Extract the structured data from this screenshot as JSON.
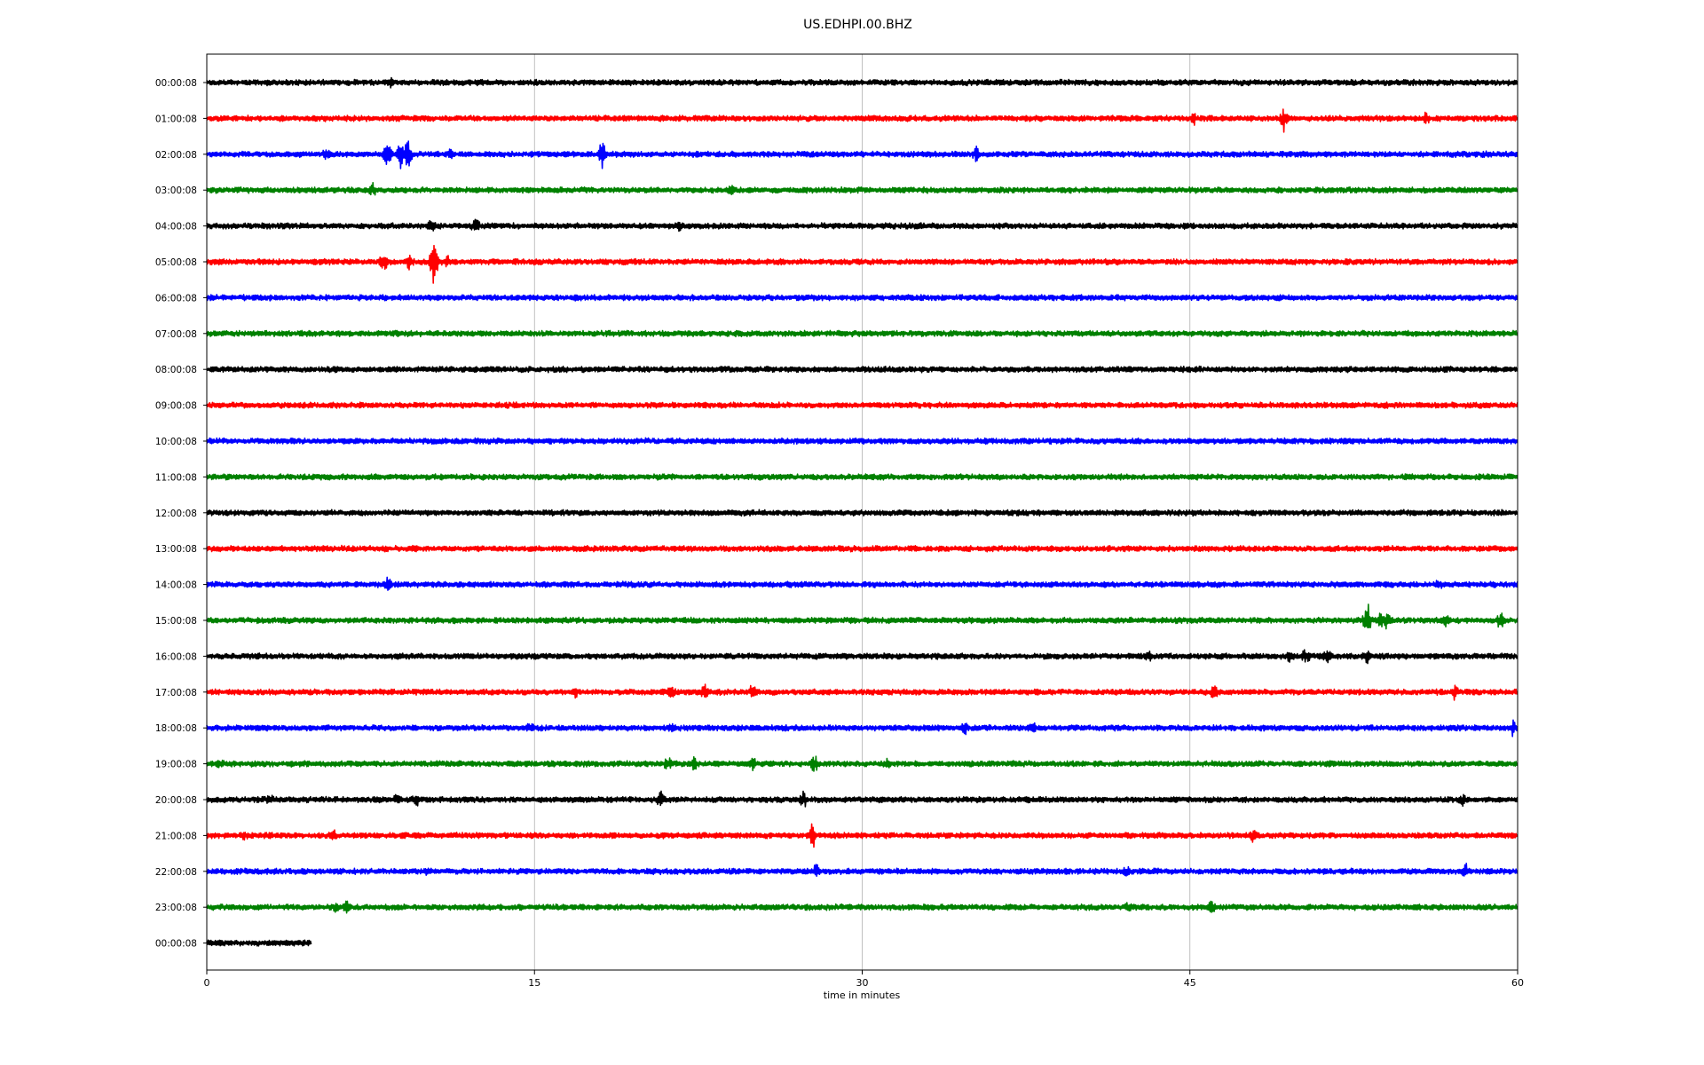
{
  "chart_data": {
    "type": "line",
    "title": "US.EDHPI.00.BHZ",
    "xlabel": "time in minutes",
    "ylabel": "",
    "xlim": [
      0,
      60
    ],
    "xticks": [
      0,
      15,
      30,
      45,
      60
    ],
    "grid": "vertical lines at x ticks",
    "line_colors": [
      "#000000",
      "#ff0000",
      "#0000ff",
      "#008000"
    ],
    "rows": [
      {
        "label": "00:00:08",
        "end_minute": 60,
        "events": [
          {
            "t": 8.4,
            "a": 0.4
          }
        ]
      },
      {
        "label": "01:00:08",
        "end_minute": 60,
        "events": [
          {
            "t": 45.2,
            "a": 0.3
          },
          {
            "t": 49.3,
            "a": 0.7
          },
          {
            "t": 55.8,
            "a": 0.4
          }
        ]
      },
      {
        "label": "02:00:08",
        "end_minute": 60,
        "events": [
          {
            "t": 5.5,
            "a": 0.4
          },
          {
            "t": 8.3,
            "a": 1.3
          },
          {
            "t": 8.9,
            "a": 1.1
          },
          {
            "t": 9.2,
            "a": 1.0
          },
          {
            "t": 11.2,
            "a": 0.4
          },
          {
            "t": 18.1,
            "a": 0.9
          },
          {
            "t": 35.2,
            "a": 0.4
          }
        ]
      },
      {
        "label": "03:00:08",
        "end_minute": 60,
        "events": [
          {
            "t": 7.6,
            "a": 0.5
          },
          {
            "t": 24.0,
            "a": 0.4
          }
        ]
      },
      {
        "label": "04:00:08",
        "end_minute": 60,
        "events": [
          {
            "t": 10.3,
            "a": 0.5
          },
          {
            "t": 12.3,
            "a": 0.5
          },
          {
            "t": 21.6,
            "a": 0.4
          }
        ]
      },
      {
        "label": "05:00:08",
        "end_minute": 60,
        "events": [
          {
            "t": 8.1,
            "a": 0.6
          },
          {
            "t": 9.3,
            "a": 0.5
          },
          {
            "t": 10.4,
            "a": 2.2
          },
          {
            "t": 11.0,
            "a": 0.4
          }
        ]
      },
      {
        "label": "06:00:08",
        "end_minute": 60,
        "events": []
      },
      {
        "label": "07:00:08",
        "end_minute": 60,
        "events": []
      },
      {
        "label": "08:00:08",
        "end_minute": 60,
        "events": []
      },
      {
        "label": "09:00:08",
        "end_minute": 60,
        "events": []
      },
      {
        "label": "10:00:08",
        "end_minute": 60,
        "events": []
      },
      {
        "label": "11:00:08",
        "end_minute": 60,
        "events": []
      },
      {
        "label": "12:00:08",
        "end_minute": 60,
        "events": []
      },
      {
        "label": "13:00:08",
        "end_minute": 60,
        "events": []
      },
      {
        "label": "14:00:08",
        "end_minute": 60,
        "events": [
          {
            "t": 8.3,
            "a": 0.4
          },
          {
            "t": 56.4,
            "a": 0.3
          }
        ]
      },
      {
        "label": "15:00:08",
        "end_minute": 60,
        "events": [
          {
            "t": 53.1,
            "a": 1.3
          },
          {
            "t": 53.7,
            "a": 0.6
          },
          {
            "t": 54.0,
            "a": 0.5
          },
          {
            "t": 56.7,
            "a": 0.5
          },
          {
            "t": 59.2,
            "a": 0.5
          }
        ]
      },
      {
        "label": "16:00:08",
        "end_minute": 60,
        "events": [
          {
            "t": 43.1,
            "a": 0.4
          },
          {
            "t": 49.6,
            "a": 0.5
          },
          {
            "t": 50.3,
            "a": 0.5
          },
          {
            "t": 51.3,
            "a": 0.7
          },
          {
            "t": 53.1,
            "a": 0.4
          }
        ]
      },
      {
        "label": "17:00:08",
        "end_minute": 60,
        "events": [
          {
            "t": 16.9,
            "a": 0.3
          },
          {
            "t": 21.3,
            "a": 0.5
          },
          {
            "t": 22.8,
            "a": 0.5
          },
          {
            "t": 25.0,
            "a": 0.5
          },
          {
            "t": 46.1,
            "a": 0.5
          },
          {
            "t": 57.1,
            "a": 0.5
          }
        ]
      },
      {
        "label": "18:00:08",
        "end_minute": 60,
        "events": [
          {
            "t": 14.8,
            "a": 0.3
          },
          {
            "t": 21.3,
            "a": 0.3
          },
          {
            "t": 34.7,
            "a": 0.4
          },
          {
            "t": 37.8,
            "a": 0.4
          },
          {
            "t": 59.8,
            "a": 0.5
          }
        ]
      },
      {
        "label": "19:00:08",
        "end_minute": 60,
        "events": [
          {
            "t": 0.6,
            "a": 0.3
          },
          {
            "t": 21.1,
            "a": 0.4
          },
          {
            "t": 22.3,
            "a": 0.5
          },
          {
            "t": 25.0,
            "a": 0.4
          },
          {
            "t": 27.8,
            "a": 0.6
          },
          {
            "t": 31.2,
            "a": 0.3
          }
        ]
      },
      {
        "label": "20:00:08",
        "end_minute": 60,
        "events": [
          {
            "t": 2.9,
            "a": 0.3
          },
          {
            "t": 8.7,
            "a": 0.4
          },
          {
            "t": 9.6,
            "a": 0.4
          },
          {
            "t": 20.8,
            "a": 0.6
          },
          {
            "t": 27.3,
            "a": 0.5
          },
          {
            "t": 57.5,
            "a": 0.4
          }
        ]
      },
      {
        "label": "21:00:08",
        "end_minute": 60,
        "events": [
          {
            "t": 1.7,
            "a": 0.3
          },
          {
            "t": 5.8,
            "a": 0.3
          },
          {
            "t": 27.7,
            "a": 1.0
          },
          {
            "t": 47.9,
            "a": 0.4
          }
        ]
      },
      {
        "label": "22:00:08",
        "end_minute": 60,
        "events": [
          {
            "t": 10.1,
            "a": 0.3
          },
          {
            "t": 27.9,
            "a": 0.5
          },
          {
            "t": 42.1,
            "a": 0.3
          },
          {
            "t": 57.6,
            "a": 0.5
          }
        ]
      },
      {
        "label": "23:00:08",
        "end_minute": 60,
        "events": [
          {
            "t": 5.9,
            "a": 0.3
          },
          {
            "t": 6.4,
            "a": 0.4
          },
          {
            "t": 42.2,
            "a": 0.3
          },
          {
            "t": 46.0,
            "a": 0.4
          }
        ]
      },
      {
        "label": "00:00:08",
        "end_minute": 4.8,
        "events": []
      }
    ]
  }
}
